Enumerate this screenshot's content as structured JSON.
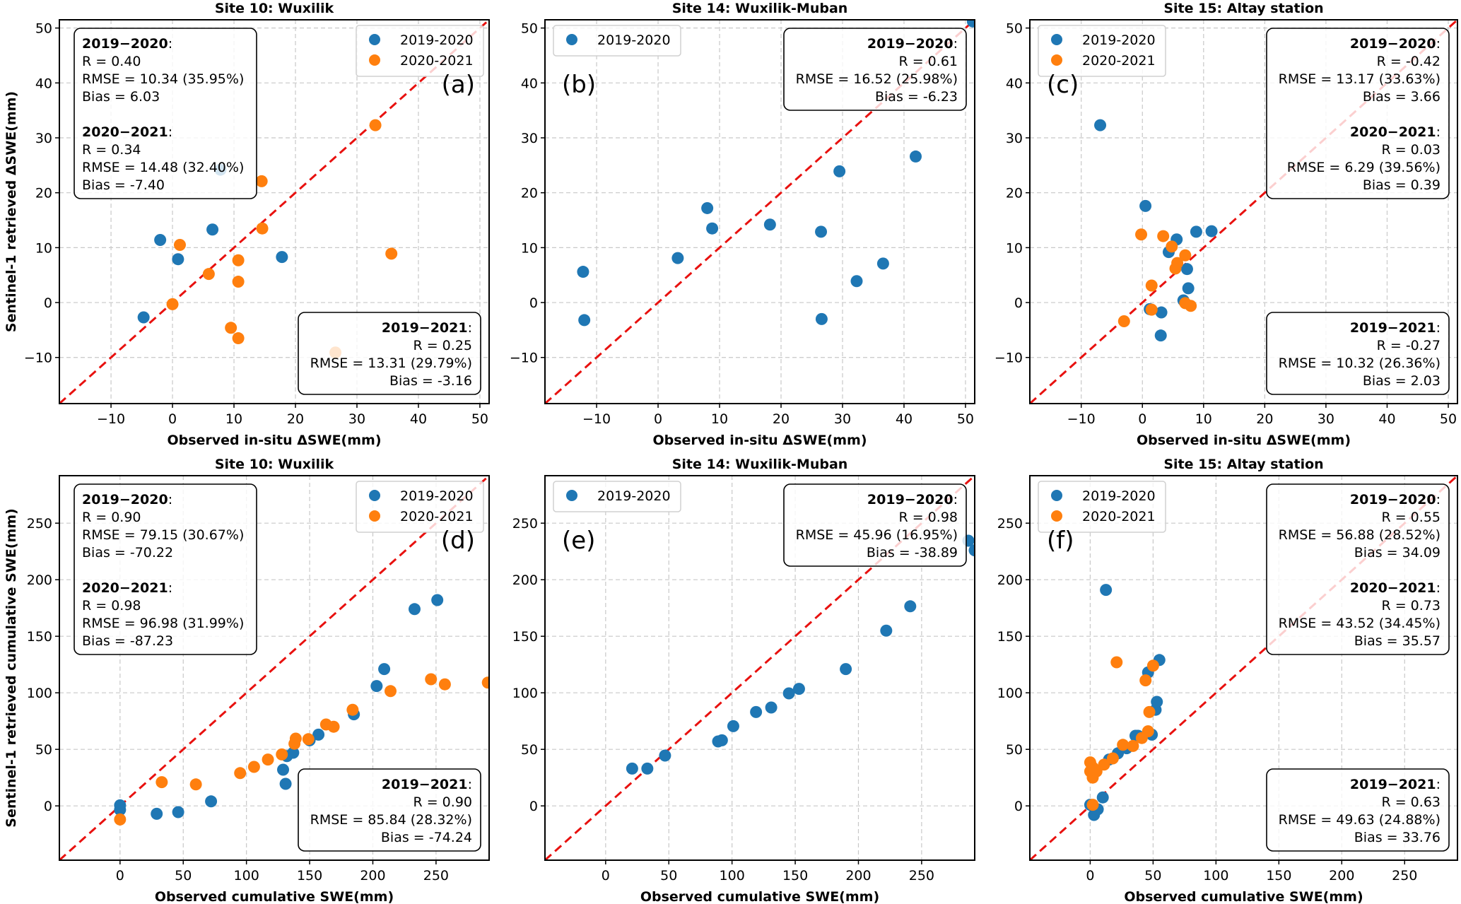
{
  "colors": {
    "series_2019_2020": "#1f77b4",
    "series_2020_2021": "#ff7f0e",
    "one_to_one": "#e8110f"
  },
  "chart_data": [
    {
      "id": "a",
      "panel_label": "(a)",
      "type": "scatter",
      "title": "Site 10: Wuxilik",
      "xlabel": "Observed in-situ ΔSWE(mm)",
      "ylabel": "Sentinel-1 retrieved ΔSWE(mm)",
      "xlim": [
        -18.4,
        51.5
      ],
      "ylim": [
        -18.4,
        51.5
      ],
      "xticks": [
        -10,
        0,
        10,
        20,
        30,
        40,
        50
      ],
      "yticks": [
        -10,
        0,
        10,
        20,
        30,
        40,
        50
      ],
      "xtick_labels": [
        "−10",
        "0",
        "10",
        "20",
        "30",
        "40",
        "50"
      ],
      "ytick_labels": [
        "−10",
        "0",
        "10",
        "20",
        "30",
        "40",
        "50"
      ],
      "grid": true,
      "one_to_one_line": true,
      "legend": {
        "placement": "top-right",
        "entries": [
          "2019-2020",
          "2020-2021"
        ]
      },
      "series": [
        {
          "name": "2019-2020",
          "points": [
            [
              -4.7,
              -2.7
            ],
            [
              -2.0,
              11.4
            ],
            [
              0.9,
              7.9
            ],
            [
              6.5,
              13.3
            ],
            [
              7.8,
              24.2
            ],
            [
              17.8,
              8.3
            ]
          ]
        },
        {
          "name": "2020-2021",
          "points": [
            [
              0.0,
              -0.3
            ],
            [
              1.2,
              10.5
            ],
            [
              5.9,
              5.2
            ],
            [
              9.5,
              -4.6
            ],
            [
              10.7,
              7.7
            ],
            [
              10.7,
              3.8
            ],
            [
              10.7,
              -6.5
            ],
            [
              14.5,
              22.1
            ],
            [
              14.6,
              13.5
            ],
            [
              26.5,
              -9.1
            ],
            [
              33.0,
              32.3
            ],
            [
              35.6,
              8.9
            ]
          ]
        }
      ],
      "stat_boxes": [
        {
          "placement": "upper-left",
          "align": "left",
          "blocks": [
            {
              "header": "2019−2020",
              "lines": [
                "R = 0.40",
                "RMSE = 10.34 (35.95%)",
                "Bias = 6.03"
              ]
            },
            {
              "header": "2020−2021",
              "lines": [
                "R = 0.34",
                "RMSE = 14.48 (32.40%)",
                "Bias = -7.40"
              ]
            }
          ]
        },
        {
          "placement": "lower-right",
          "align": "right",
          "blocks": [
            {
              "header": "2019−2021",
              "lines": [
                "R = 0.25",
                "RMSE = 13.31 (29.79%)",
                "Bias = -3.16"
              ]
            }
          ]
        }
      ]
    },
    {
      "id": "b",
      "panel_label": "(b)",
      "type": "scatter",
      "title": "Site 14: Wuxilik-Muban",
      "xlabel": "Observed in-situ ΔSWE(mm)",
      "ylabel": "",
      "xlim": [
        -18.4,
        51.5
      ],
      "ylim": [
        -18.4,
        51.5
      ],
      "xticks": [
        -10,
        0,
        10,
        20,
        30,
        40,
        50
      ],
      "yticks": [
        -10,
        0,
        10,
        20,
        30,
        40,
        50
      ],
      "xtick_labels": [
        "−10",
        "0",
        "10",
        "20",
        "30",
        "40",
        "50"
      ],
      "ytick_labels": [
        "−10",
        "0",
        "10",
        "20",
        "30",
        "40",
        "50"
      ],
      "grid": true,
      "one_to_one_line": true,
      "legend": {
        "placement": "top-left",
        "entries": [
          "2019-2020"
        ]
      },
      "series": [
        {
          "name": "2019-2020",
          "points": [
            [
              -12.2,
              5.6
            ],
            [
              -12.0,
              -3.2
            ],
            [
              3.2,
              8.1
            ],
            [
              8.0,
              17.2
            ],
            [
              8.8,
              13.5
            ],
            [
              18.2,
              14.2
            ],
            [
              26.5,
              12.9
            ],
            [
              26.6,
              -3.0
            ],
            [
              29.5,
              23.9
            ],
            [
              32.3,
              3.9
            ],
            [
              36.6,
              7.1
            ],
            [
              41.9,
              26.6
            ],
            [
              51.2,
              51.2
            ]
          ]
        }
      ],
      "stat_boxes": [
        {
          "placement": "upper-right",
          "align": "right",
          "blocks": [
            {
              "header": "2019−2020",
              "lines": [
                "R = 0.61",
                "RMSE = 16.52 (25.98%)",
                "Bias = -6.23"
              ]
            }
          ]
        }
      ]
    },
    {
      "id": "c",
      "panel_label": "(c)",
      "type": "scatter",
      "title": "Site 15: Altay station",
      "xlabel": "Observed in-situ ΔSWE(mm)",
      "ylabel": "",
      "xlim": [
        -18.4,
        51.5
      ],
      "ylim": [
        -18.4,
        51.5
      ],
      "xticks": [
        -10,
        0,
        10,
        20,
        30,
        40,
        50
      ],
      "yticks": [
        -10,
        0,
        10,
        20,
        30,
        40,
        50
      ],
      "xtick_labels": [
        "−10",
        "0",
        "10",
        "20",
        "30",
        "40",
        "50"
      ],
      "ytick_labels": [
        "−10",
        "0",
        "10",
        "20",
        "30",
        "40",
        "50"
      ],
      "grid": true,
      "one_to_one_line": true,
      "legend": {
        "placement": "top-left",
        "entries": [
          "2019-2020",
          "2020-2021"
        ]
      },
      "series": [
        {
          "name": "2019-2020",
          "points": [
            [
              -6.9,
              32.3
            ],
            [
              0.5,
              17.6
            ],
            [
              1.2,
              -1.2
            ],
            [
              3.0,
              -6.0
            ],
            [
              3.1,
              -1.8
            ],
            [
              4.3,
              9.2
            ],
            [
              5.6,
              11.5
            ],
            [
              6.7,
              0.4
            ],
            [
              7.3,
              6.1
            ],
            [
              7.5,
              2.6
            ],
            [
              8.8,
              12.9
            ],
            [
              11.3,
              13.0
            ]
          ]
        },
        {
          "name": "2020-2021",
          "points": [
            [
              -3.0,
              -3.4
            ],
            [
              -0.2,
              12.4
            ],
            [
              1.5,
              3.1
            ],
            [
              1.5,
              -1.3
            ],
            [
              3.4,
              12.1
            ],
            [
              4.8,
              10.2
            ],
            [
              5.4,
              6.2
            ],
            [
              5.7,
              7.2
            ],
            [
              7.0,
              8.6
            ],
            [
              7.0,
              -0.1
            ],
            [
              7.9,
              -0.6
            ]
          ]
        }
      ],
      "stat_boxes": [
        {
          "placement": "upper-right",
          "align": "right",
          "blocks": [
            {
              "header": "2019−2020",
              "lines": [
                "R = -0.42",
                "RMSE = 13.17 (33.63%)",
                "Bias = 3.66"
              ]
            },
            {
              "header": "2020−2021",
              "lines": [
                "R = 0.03",
                "RMSE = 6.29 (39.56%)",
                "Bias = 0.39"
              ]
            }
          ]
        },
        {
          "placement": "lower-right",
          "align": "right",
          "blocks": [
            {
              "header": "2019−2021",
              "lines": [
                "R = -0.27",
                "RMSE = 10.32 (26.36%)",
                "Bias = 2.03"
              ]
            }
          ]
        }
      ]
    },
    {
      "id": "d",
      "panel_label": "(d)",
      "type": "scatter",
      "title": "Site 10: Wuxilik",
      "xlabel": "Observed cumulative SWE(mm)",
      "ylabel": "Sentinel-1 retrieved cumulative SWE(mm)",
      "xlim": [
        -48,
        292
      ],
      "ylim": [
        -48,
        292
      ],
      "xticks": [
        0,
        50,
        100,
        150,
        200,
        250
      ],
      "yticks": [
        0,
        50,
        100,
        150,
        200,
        250
      ],
      "xtick_labels": [
        "0",
        "50",
        "100",
        "150",
        "200",
        "250"
      ],
      "ytick_labels": [
        "0",
        "50",
        "100",
        "150",
        "200",
        "250"
      ],
      "grid": true,
      "one_to_one_line": true,
      "legend": {
        "placement": "top-right",
        "entries": [
          "2019-2020",
          "2020-2021"
        ]
      },
      "series": [
        {
          "name": "2019-2020",
          "points": [
            [
              0,
              0.5
            ],
            [
              0,
              -3.5
            ],
            [
              29,
              -7
            ],
            [
              46,
              -5.5
            ],
            [
              72,
              4
            ],
            [
              129,
              32
            ],
            [
              131,
              19.5
            ],
            [
              132,
              44
            ],
            [
              137,
              47
            ],
            [
              150,
              58
            ],
            [
              157,
              63
            ],
            [
              185,
              81
            ],
            [
              203,
              106
            ],
            [
              209,
              121
            ],
            [
              233,
              174
            ],
            [
              251,
              182
            ]
          ]
        },
        {
          "name": "2020-2021",
          "points": [
            [
              0,
              -12
            ],
            [
              33,
              21
            ],
            [
              60,
              19
            ],
            [
              95,
              29
            ],
            [
              106,
              34.5
            ],
            [
              117,
              41
            ],
            [
              128,
              45.5
            ],
            [
              138,
              55
            ],
            [
              139,
              59.5
            ],
            [
              149,
              59
            ],
            [
              163,
              72
            ],
            [
              169,
              70
            ],
            [
              184,
              85
            ],
            [
              214,
              101.5
            ],
            [
              246,
              112
            ],
            [
              257,
              107.5
            ],
            [
              291,
              109
            ]
          ]
        }
      ],
      "stat_boxes": [
        {
          "placement": "upper-left",
          "align": "left",
          "blocks": [
            {
              "header": "2019−2020",
              "lines": [
                "R = 0.90",
                "RMSE = 79.15 (30.67%)",
                "Bias = -70.22"
              ]
            },
            {
              "header": "2020−2021",
              "lines": [
                "R = 0.98",
                "RMSE = 96.98 (31.99%)",
                "Bias = -87.23"
              ]
            }
          ]
        },
        {
          "placement": "lower-right",
          "align": "right",
          "blocks": [
            {
              "header": "2019−2021",
              "lines": [
                "R = 0.90",
                "RMSE = 85.84 (28.32%)",
                "Bias = -74.24"
              ]
            }
          ]
        }
      ]
    },
    {
      "id": "e",
      "panel_label": "(e)",
      "type": "scatter",
      "title": "Site 14: Wuxilik-Muban",
      "xlabel": "Observed cumulative SWE(mm)",
      "ylabel": "",
      "xlim": [
        -48,
        292
      ],
      "ylim": [
        -48,
        292
      ],
      "xticks": [
        0,
        50,
        100,
        150,
        200,
        250
      ],
      "yticks": [
        0,
        50,
        100,
        150,
        200,
        250
      ],
      "xtick_labels": [
        "0",
        "50",
        "100",
        "150",
        "200",
        "250"
      ],
      "ytick_labels": [
        "0",
        "50",
        "100",
        "150",
        "200",
        "250"
      ],
      "grid": true,
      "one_to_one_line": true,
      "legend": {
        "placement": "top-left",
        "entries": [
          "2019-2020"
        ]
      },
      "series": [
        {
          "name": "2019-2020",
          "points": [
            [
              21,
              33
            ],
            [
              33,
              33
            ],
            [
              47,
              44.5
            ],
            [
              89,
              57
            ],
            [
              92,
              58
            ],
            [
              101,
              70.5
            ],
            [
              119,
              83
            ],
            [
              131,
              87
            ],
            [
              145,
              99.5
            ],
            [
              153,
              103.5
            ],
            [
              190,
              121
            ],
            [
              222,
              155
            ],
            [
              241,
              176.5
            ],
            [
              287,
              234.5
            ],
            [
              292,
              226
            ]
          ]
        }
      ],
      "stat_boxes": [
        {
          "placement": "upper-right",
          "align": "right",
          "blocks": [
            {
              "header": "2019−2020",
              "lines": [
                "R = 0.98",
                "RMSE = 45.96 (16.95%)",
                "Bias = -38.89"
              ]
            }
          ]
        }
      ]
    },
    {
      "id": "f",
      "panel_label": "(f)",
      "type": "scatter",
      "title": "Site 15: Altay station",
      "xlabel": "Observed cumulative SWE(mm)",
      "ylabel": "",
      "xlim": [
        -48,
        292
      ],
      "ylim": [
        -48,
        292
      ],
      "xticks": [
        0,
        50,
        100,
        150,
        200,
        250
      ],
      "yticks": [
        0,
        50,
        100,
        150,
        200,
        250
      ],
      "xtick_labels": [
        "0",
        "50",
        "100",
        "150",
        "200",
        "250"
      ],
      "ytick_labels": [
        "0",
        "50",
        "100",
        "150",
        "200",
        "250"
      ],
      "grid": true,
      "one_to_one_line": true,
      "legend": {
        "placement": "top-left",
        "entries": [
          "2019-2020",
          "2020-2021"
        ]
      },
      "series": [
        {
          "name": "2019-2020",
          "points": [
            [
              0,
              1
            ],
            [
              3,
              -8
            ],
            [
              5,
              -3
            ],
            [
              6,
              -3
            ],
            [
              10,
              7.5
            ],
            [
              12.5,
              191
            ],
            [
              15,
              41
            ],
            [
              22,
              46.5
            ],
            [
              29,
              51
            ],
            [
              36,
              62
            ],
            [
              38,
              62
            ],
            [
              46,
              118
            ],
            [
              49,
              63
            ],
            [
              52,
              85
            ],
            [
              53,
              92
            ],
            [
              55,
              129
            ]
          ]
        },
        {
          "name": "2020-2021",
          "points": [
            [
              0,
              38.5
            ],
            [
              0,
              30.5
            ],
            [
              2,
              34
            ],
            [
              2,
              25
            ],
            [
              2,
              27.5
            ],
            [
              2,
              1
            ],
            [
              5,
              30.5
            ],
            [
              11,
              36.5
            ],
            [
              18,
              42
            ],
            [
              21,
              127
            ],
            [
              26,
              54
            ],
            [
              34,
              53
            ],
            [
              41,
              60
            ],
            [
              44,
              111
            ],
            [
              46,
              66
            ],
            [
              47,
              83
            ],
            [
              50,
              124
            ]
          ]
        }
      ],
      "stat_boxes": [
        {
          "placement": "upper-right",
          "align": "right",
          "blocks": [
            {
              "header": "2019−2020",
              "lines": [
                "R = 0.55",
                "RMSE = 56.88 (28.52%)",
                "Bias = 34.09"
              ]
            },
            {
              "header": "2020−2021",
              "lines": [
                "R = 0.73",
                "RMSE = 43.52 (34.45%)",
                "Bias = 35.57"
              ]
            }
          ]
        },
        {
          "placement": "lower-right",
          "align": "right",
          "blocks": [
            {
              "header": "2019−2021",
              "lines": [
                "R = 0.63",
                "RMSE = 49.63 (24.88%)",
                "Bias = 33.76"
              ]
            }
          ]
        }
      ]
    }
  ]
}
